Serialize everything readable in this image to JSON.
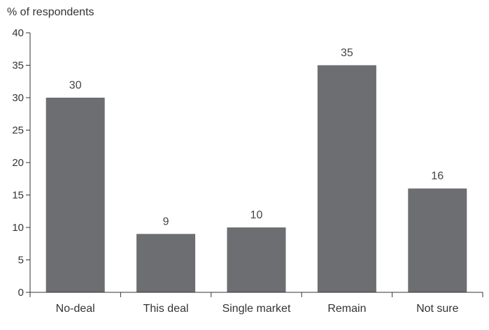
{
  "chart_data": {
    "type": "bar",
    "title": "",
    "ylabel": "% of respondents",
    "xlabel": "",
    "categories": [
      "No-deal",
      "This deal",
      "Single market",
      "Remain",
      "Not sure"
    ],
    "values": [
      30,
      9,
      10,
      35,
      16
    ],
    "data_labels": [
      "30",
      "9",
      "10",
      "35",
      "16"
    ],
    "ylim": [
      0,
      40
    ],
    "yticks": [
      0,
      5,
      10,
      15,
      20,
      25,
      30,
      35,
      40
    ],
    "grid": false,
    "legend": "none",
    "bar_color": "#6d6e71"
  }
}
